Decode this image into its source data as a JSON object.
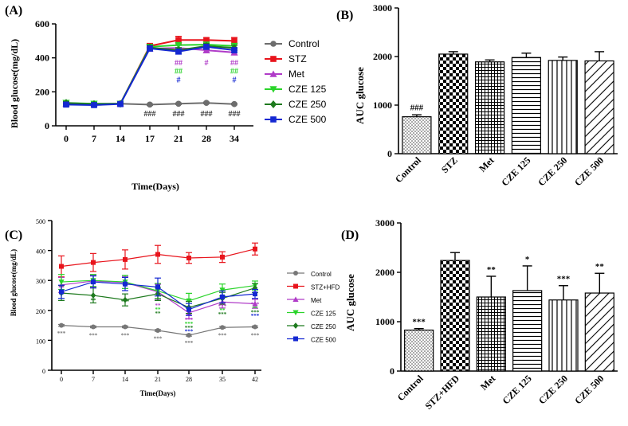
{
  "chart_data": [
    {
      "panel": "(A)",
      "type": "line",
      "xlabel": "Time(Days)",
      "ylabel": "Blood glucose(mg/dL)",
      "categories": [
        "0",
        "7",
        "14",
        "17",
        "21",
        "28",
        "34"
      ],
      "ylim": [
        0,
        600
      ],
      "yticks": [
        "0",
        "200",
        "400",
        "600"
      ],
      "series": [
        {
          "name": "Control",
          "color": "#6d6d6d",
          "marker": "circle",
          "values": [
            130,
            125,
            130,
            125,
            130,
            135,
            128
          ],
          "err": [
            5,
            5,
            5,
            5,
            5,
            5,
            5
          ]
        },
        {
          "name": "STZ",
          "color": "#e8141c",
          "marker": "square",
          "values": [
            130,
            128,
            130,
            470,
            505,
            505,
            500
          ],
          "err": [
            8,
            8,
            8,
            15,
            22,
            12,
            20
          ]
        },
        {
          "name": "Met",
          "color": "#b03cc8",
          "marker": "triangle-up",
          "values": [
            132,
            130,
            130,
            455,
            458,
            445,
            432
          ],
          "err": [
            8,
            8,
            8,
            15,
            15,
            15,
            15
          ]
        },
        {
          "name": "CZE 125",
          "color": "#2ad42a",
          "marker": "triangle-down",
          "values": [
            135,
            130,
            130,
            465,
            475,
            478,
            470
          ],
          "err": [
            8,
            8,
            8,
            15,
            15,
            15,
            15
          ]
        },
        {
          "name": "CZE 250",
          "color": "#1e7a1e",
          "marker": "diamond",
          "values": [
            135,
            128,
            130,
            460,
            445,
            470,
            458
          ],
          "err": [
            8,
            8,
            8,
            15,
            15,
            15,
            15
          ]
        },
        {
          "name": "CZE 500",
          "color": "#1428d2",
          "marker": "square",
          "values": [
            125,
            122,
            128,
            455,
            437,
            465,
            445
          ],
          "err": [
            8,
            8,
            8,
            15,
            15,
            15,
            15
          ]
        }
      ],
      "annotations": [
        {
          "text": "###",
          "x": "17",
          "y": 70,
          "color": "#333333"
        },
        {
          "text": "###",
          "x": "21",
          "y": 70,
          "color": "#333333"
        },
        {
          "text": "###",
          "x": "28",
          "y": 70,
          "color": "#333333"
        },
        {
          "text": "###",
          "x": "34",
          "y": 70,
          "color": "#333333"
        },
        {
          "text": "##",
          "x": "21",
          "y": 370,
          "color": "#b03cc8"
        },
        {
          "text": "#",
          "x": "28",
          "y": 370,
          "color": "#b03cc8"
        },
        {
          "text": "##",
          "x": "34",
          "y": 370,
          "color": "#b03cc8"
        },
        {
          "text": "##",
          "x": "21",
          "y": 320,
          "color": "#2ad42a"
        },
        {
          "text": "##",
          "x": "34",
          "y": 320,
          "color": "#2ad42a"
        },
        {
          "text": "#",
          "x": "21",
          "y": 270,
          "color": "#1428d2"
        },
        {
          "text": "#",
          "x": "34",
          "y": 270,
          "color": "#1428d2"
        }
      ]
    },
    {
      "panel": "(B)",
      "type": "bar",
      "ylabel": "AUC glucose",
      "ylim": [
        0,
        3000
      ],
      "yticks": [
        "0",
        "1000",
        "2000",
        "3000"
      ],
      "categories": [
        "Control",
        "STZ",
        "Met",
        "CZE 125",
        "CZE 250",
        "CZE 500"
      ],
      "values": [
        760,
        2050,
        1890,
        1980,
        1920,
        1910
      ],
      "err": [
        40,
        50,
        40,
        90,
        70,
        190
      ],
      "patterns": [
        "dots",
        "checker",
        "grid",
        "hlines",
        "vlines",
        "diag"
      ],
      "labels": [
        "###",
        "",
        "",
        "",
        "",
        ""
      ]
    },
    {
      "panel": "(C)",
      "type": "line",
      "xlabel": "Time(Days)",
      "ylabel": "Blood glucose(mg/dL)",
      "categories": [
        "0",
        "7",
        "14",
        "21",
        "28",
        "35",
        "42"
      ],
      "ylim": [
        0,
        500
      ],
      "yticks": [
        "0",
        "100",
        "200",
        "300",
        "400",
        "500"
      ],
      "series": [
        {
          "name": "Control",
          "color": "#777777",
          "marker": "circle",
          "values": [
            150,
            145,
            145,
            133,
            117,
            143,
            145
          ],
          "err": [
            3,
            3,
            3,
            3,
            3,
            3,
            3
          ]
        },
        {
          "name": "STZ+HFD",
          "color": "#e8141c",
          "marker": "square",
          "values": [
            347,
            360,
            370,
            387,
            375,
            378,
            405
          ],
          "err": [
            35,
            30,
            32,
            30,
            18,
            18,
            20
          ]
        },
        {
          "name": "Met",
          "color": "#b03cc8",
          "marker": "triangle-up",
          "values": [
            285,
            298,
            293,
            262,
            192,
            228,
            222
          ],
          "err": [
            25,
            20,
            20,
            25,
            20,
            20,
            15
          ]
        },
        {
          "name": "CZE 125",
          "color": "#2ad42a",
          "marker": "triangle-down",
          "values": [
            295,
            300,
            295,
            265,
            232,
            268,
            283
          ],
          "err": [
            25,
            20,
            22,
            25,
            25,
            20,
            15
          ]
        },
        {
          "name": "CZE 250",
          "color": "#1e7a1e",
          "marker": "diamond",
          "values": [
            258,
            250,
            235,
            255,
            210,
            240,
            275
          ],
          "err": [
            25,
            25,
            20,
            22,
            20,
            20,
            15
          ]
        },
        {
          "name": "CZE 500",
          "color": "#1428d2",
          "marker": "square",
          "values": [
            262,
            295,
            288,
            278,
            203,
            245,
            255
          ],
          "err": [
            22,
            20,
            22,
            30,
            20,
            20,
            15
          ]
        }
      ],
      "annotations": [
        {
          "text": "***",
          "x": "0",
          "y": 125,
          "color": "#777777"
        },
        {
          "text": "***",
          "x": "7",
          "y": 118,
          "color": "#777777"
        },
        {
          "text": "***",
          "x": "14",
          "y": 118,
          "color": "#777777"
        },
        {
          "text": "***",
          "x": "21",
          "y": 108,
          "color": "#777777"
        },
        {
          "text": "***",
          "x": "28",
          "y": 93,
          "color": "#777777"
        },
        {
          "text": "***",
          "x": "35",
          "y": 118,
          "color": "#777777"
        },
        {
          "text": "***",
          "x": "42",
          "y": 118,
          "color": "#777777"
        },
        {
          "text": "**",
          "x": "7",
          "y": 235,
          "color": "#1e7a1e"
        },
        {
          "text": "***",
          "x": "14",
          "y": 232,
          "color": "#1e7a1e"
        },
        {
          "text": "**",
          "x": "21",
          "y": 218,
          "color": "#b03cc8"
        },
        {
          "text": "**",
          "x": "21",
          "y": 205,
          "color": "#2ad42a"
        },
        {
          "text": "**",
          "x": "21",
          "y": 192,
          "color": "#1e7a1e"
        },
        {
          "text": "***",
          "x": "28",
          "y": 170,
          "color": "#b03cc8"
        },
        {
          "text": "***",
          "x": "28",
          "y": 157,
          "color": "#2ad42a"
        },
        {
          "text": "***",
          "x": "28",
          "y": 144,
          "color": "#1e7a1e"
        },
        {
          "text": "***",
          "x": "28",
          "y": 131,
          "color": "#1428d2"
        },
        {
          "text": "***",
          "x": "35",
          "y": 215,
          "color": "#b03cc8"
        },
        {
          "text": "**",
          "x": "35",
          "y": 202,
          "color": "#2ad42a"
        },
        {
          "text": "***",
          "x": "35",
          "y": 189,
          "color": "#1e7a1e"
        },
        {
          "text": "***",
          "x": "42",
          "y": 222,
          "color": "#b03cc8"
        },
        {
          "text": "**",
          "x": "42",
          "y": 209,
          "color": "#2ad42a"
        },
        {
          "text": "***",
          "x": "42",
          "y": 196,
          "color": "#1e7a1e"
        },
        {
          "text": "***",
          "x": "42",
          "y": 183,
          "color": "#1428d2"
        }
      ]
    },
    {
      "panel": "(D)",
      "type": "bar",
      "ylabel": "AUC glucose",
      "ylim": [
        0,
        3000
      ],
      "yticks": [
        "0",
        "1000",
        "2000",
        "3000"
      ],
      "categories": [
        "Control",
        "STZ+HFD",
        "Met",
        "CZE 125",
        "CZE 250",
        "CZE 500"
      ],
      "values": [
        830,
        2240,
        1500,
        1630,
        1440,
        1580
      ],
      "err": [
        30,
        160,
        420,
        500,
        290,
        400
      ],
      "patterns": [
        "dots",
        "checker",
        "grid",
        "hlines",
        "vlines",
        "diag"
      ],
      "labels": [
        "***",
        "",
        "**",
        "*",
        "***",
        "**"
      ]
    }
  ]
}
